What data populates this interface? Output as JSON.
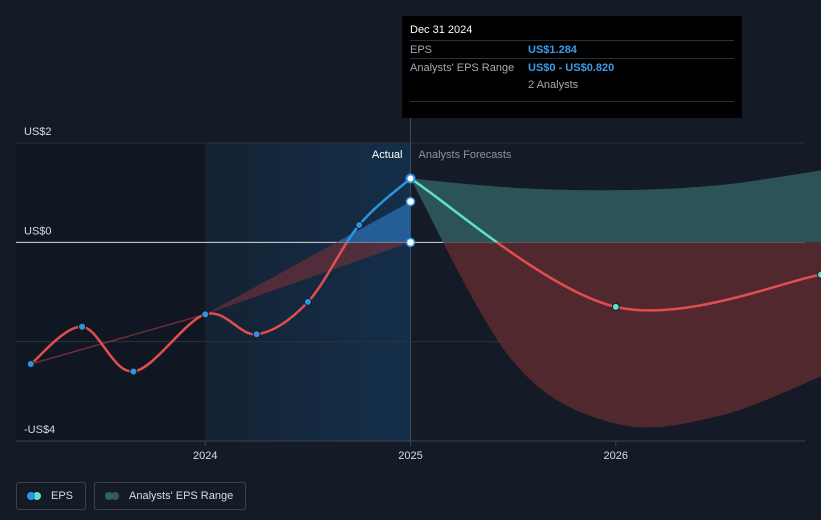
{
  "chart_data": {
    "type": "line",
    "yticks": [
      {
        "label": "US$2",
        "value": 2
      },
      {
        "label": "US$0",
        "value": 0
      },
      {
        "label": "-US$4",
        "value": -4
      }
    ],
    "ylim": [
      -4,
      2
    ],
    "xticks": [
      {
        "label": "2024",
        "value": 2024.0
      },
      {
        "label": "2025",
        "value": 2025.0
      },
      {
        "label": "2026",
        "value": 2026.0
      }
    ],
    "xlim": [
      2023.0,
      2027.0
    ],
    "actual_label": "Actual",
    "forecast_label": "Analysts Forecasts",
    "series": [
      {
        "name": "EPS",
        "points": [
          {
            "x": 2023.15,
            "y": -2.45
          },
          {
            "x": 2023.4,
            "y": -1.7
          },
          {
            "x": 2023.65,
            "y": -2.6
          },
          {
            "x": 2024.0,
            "y": -1.45
          },
          {
            "x": 2024.25,
            "y": -1.85
          },
          {
            "x": 2024.5,
            "y": -1.2
          },
          {
            "x": 2024.75,
            "y": 0.35
          },
          {
            "x": 2025.0,
            "y": 1.284
          }
        ]
      },
      {
        "name": "Analysts' EPS Forecast",
        "points": [
          {
            "x": 2025.0,
            "y": 1.284
          },
          {
            "x": 2026.0,
            "y": -1.3
          },
          {
            "x": 2027.0,
            "y": -0.65
          }
        ]
      }
    ],
    "forecast_range": {
      "name": "Analysts' EPS Range",
      "x": [
        2025.0,
        2025.5,
        2026.0,
        2026.5,
        2027.0
      ],
      "high": [
        1.284,
        1.1,
        1.05,
        1.15,
        1.45
      ],
      "low": [
        1.284,
        -2.4,
        -3.65,
        -3.5,
        -2.7
      ]
    },
    "marker_points": [
      {
        "x": 2025.0,
        "y": 0.82
      },
      {
        "x": 2025.0,
        "y": 0.0
      }
    ]
  },
  "tooltip": {
    "title": "Dec 31 2024",
    "rows": [
      {
        "key": "EPS",
        "value": "US$1.284"
      },
      {
        "key": "Analysts' EPS Range",
        "value": "US$0 - US$0.820"
      }
    ],
    "analysts": "2 Analysts"
  },
  "legend": [
    {
      "label": "EPS",
      "colors": [
        "#2f94e0",
        "#5fe0cd"
      ]
    },
    {
      "label": "Analysts' EPS Range",
      "colors": [
        "#2d6170",
        "#3a5560"
      ]
    }
  ],
  "colors": {
    "eps_rise": "#2f94e0",
    "eps_fall": "#e24d4d",
    "forecast_rise": "#5fe0cd",
    "range_up": "#2e5a5e",
    "range_down": "#5a2a30",
    "highlight": "#142f4a"
  }
}
